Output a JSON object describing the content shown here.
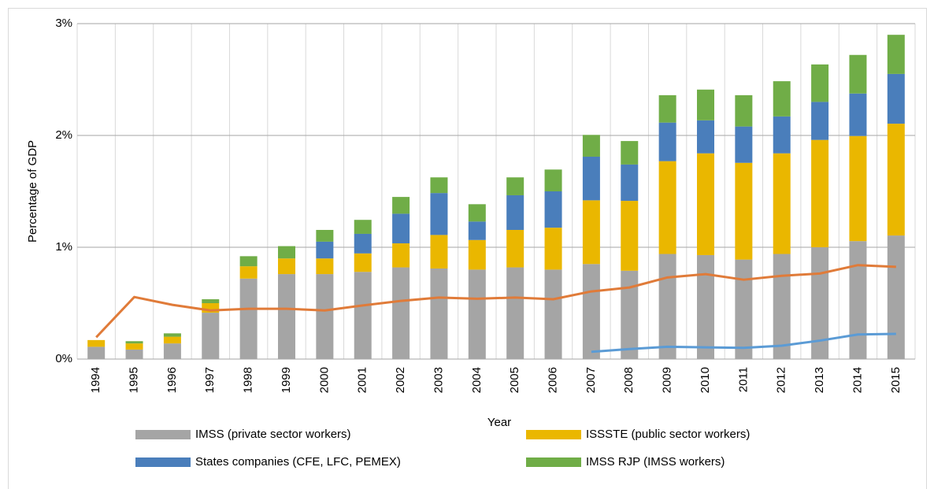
{
  "chart_data": {
    "type": "bar",
    "stacked": true,
    "y_label": "Percentage of GDP",
    "x_label": "Year",
    "categories": [
      "1994",
      "1995",
      "1996",
      "1997",
      "1998",
      "1999",
      "2000",
      "2001",
      "2002",
      "2003",
      "2004",
      "2005",
      "2006",
      "2007",
      "2008",
      "2009",
      "2010",
      "2011",
      "2012",
      "2013",
      "2014",
      "2015"
    ],
    "series": [
      {
        "name": "IMSS (private sector workers)",
        "type": "bar",
        "color": "#a5a5a5",
        "values": [
          0.11,
          0.085,
          0.14,
          0.415,
          0.72,
          0.76,
          0.76,
          0.78,
          0.82,
          0.81,
          0.8,
          0.82,
          0.8,
          0.85,
          0.79,
          0.94,
          0.93,
          0.89,
          0.94,
          1.0,
          1.055,
          1.105
        ]
      },
      {
        "name": "ISSSTE (public sector workers)",
        "type": "bar",
        "color": "#eab700",
        "values": [
          0.06,
          0.055,
          0.06,
          0.085,
          0.11,
          0.14,
          0.14,
          0.165,
          0.215,
          0.3,
          0.265,
          0.335,
          0.375,
          0.57,
          0.625,
          0.83,
          0.91,
          0.865,
          0.9,
          0.96,
          0.94,
          1.0
        ]
      },
      {
        "name": "States companies (CFE, LFC, PEMEX)",
        "type": "bar",
        "color": "#4a7ebb",
        "values": [
          0,
          0,
          0,
          0,
          0,
          0,
          0.15,
          0.175,
          0.265,
          0.375,
          0.165,
          0.31,
          0.325,
          0.39,
          0.325,
          0.345,
          0.295,
          0.325,
          0.33,
          0.34,
          0.38,
          0.445
        ]
      },
      {
        "name": "IMSS RJP (IMSS workers)",
        "type": "bar",
        "color": "#70ad47",
        "values": [
          0,
          0.02,
          0.03,
          0.035,
          0.09,
          0.11,
          0.105,
          0.125,
          0.15,
          0.14,
          0.155,
          0.16,
          0.195,
          0.195,
          0.21,
          0.245,
          0.275,
          0.28,
          0.315,
          0.335,
          0.345,
          0.35
        ]
      },
      {
        "type": "line",
        "color": "#e07b39",
        "values": [
          0.195,
          0.555,
          0.485,
          0.435,
          0.45,
          0.45,
          0.435,
          0.48,
          0.52,
          0.55,
          0.54,
          0.55,
          0.535,
          0.605,
          0.64,
          0.73,
          0.76,
          0.71,
          0.745,
          0.765,
          0.84,
          0.825
        ]
      },
      {
        "type": "line",
        "color": "#5b9bd5",
        "values": [
          null,
          null,
          null,
          null,
          null,
          null,
          null,
          null,
          null,
          null,
          null,
          null,
          null,
          0.065,
          0.09,
          0.11,
          0.105,
          0.1,
          0.12,
          0.165,
          0.22,
          0.225
        ]
      }
    ],
    "ylim": [
      0,
      3
    ],
    "yticks": [
      {
        "value": 0,
        "label": "0%"
      },
      {
        "value": 1,
        "label": "1%"
      },
      {
        "value": 2,
        "label": "2%"
      },
      {
        "value": 3,
        "label": "3%"
      }
    ],
    "grid": true,
    "legend": "bottom"
  }
}
